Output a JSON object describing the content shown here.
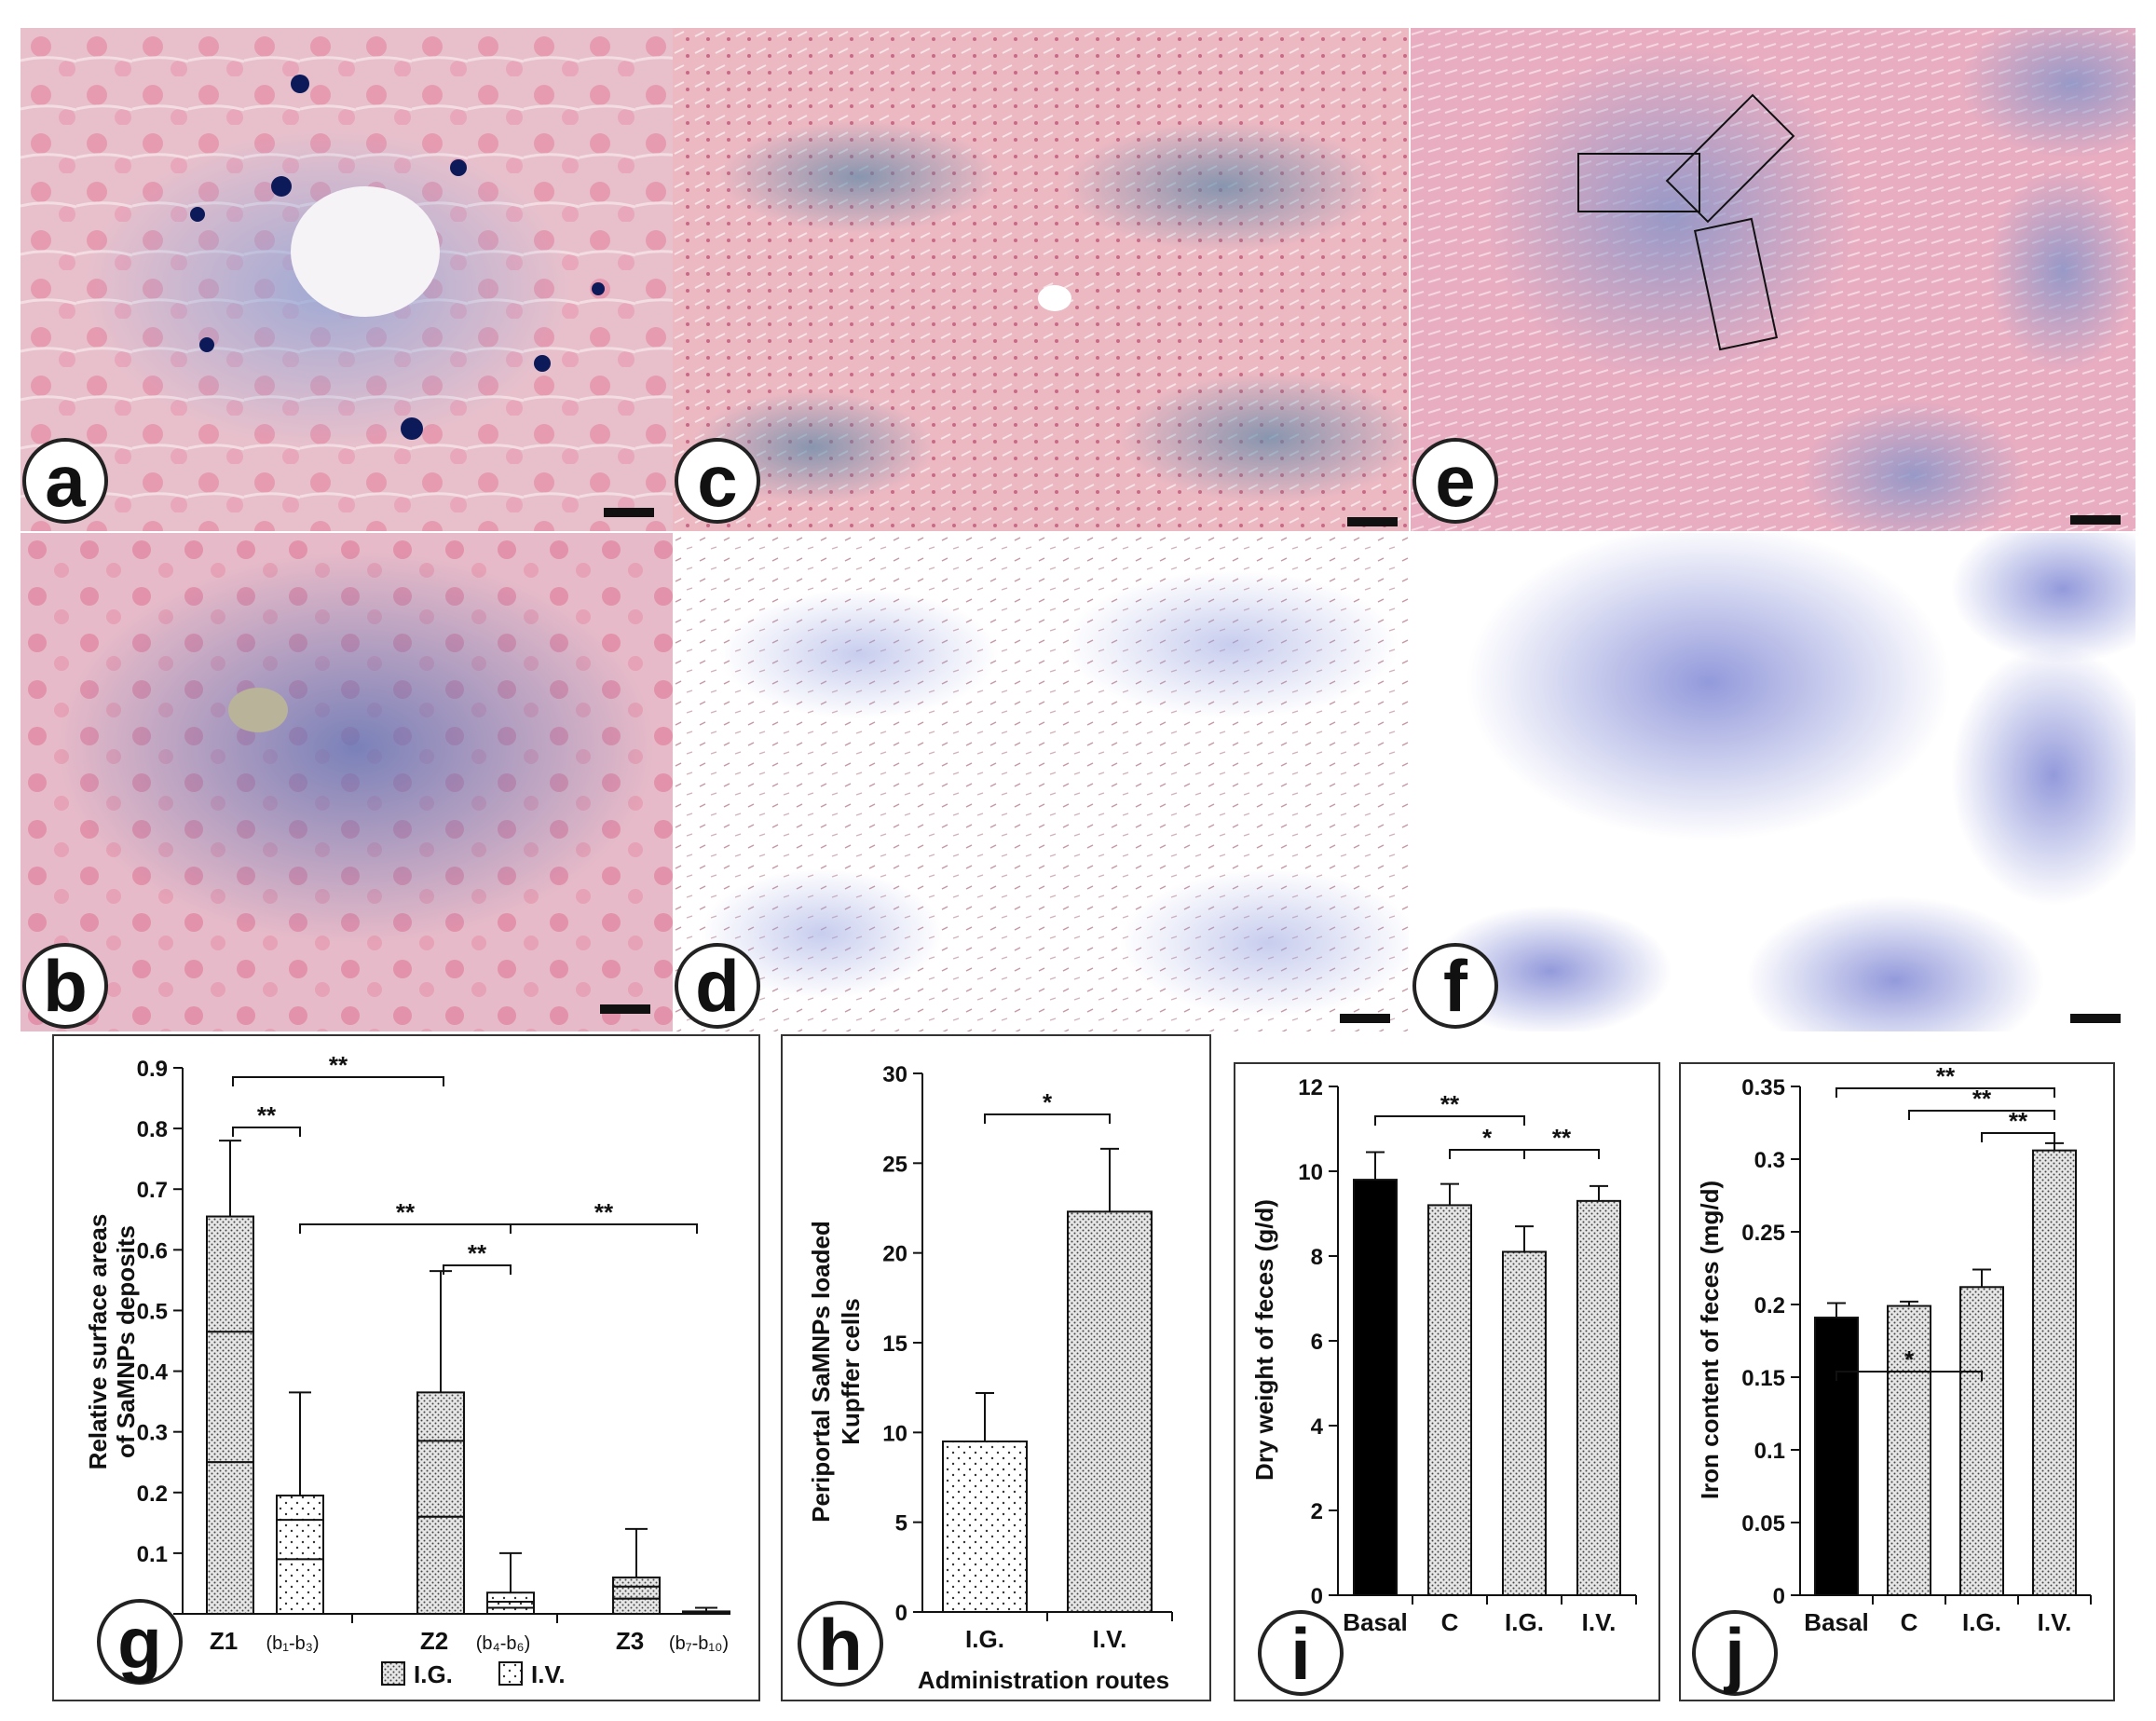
{
  "colors": {
    "tissue_pink": "#e9b8c6",
    "iron_blue": "#3a4aa8",
    "bar_black": "#000000",
    "stipple_fill": "#d8d8d8"
  },
  "micrographs": [
    {
      "letter": "a"
    },
    {
      "letter": "c"
    },
    {
      "letter": "e"
    },
    {
      "letter": "b"
    },
    {
      "letter": "d"
    },
    {
      "letter": "f"
    }
  ],
  "chart_data": [
    {
      "panel": "g",
      "type": "box",
      "ylabel": "Relative surface areas of SaMNPs deposits",
      "ylim": [
        0,
        0.9
      ],
      "yticks": [
        "0",
        "0.1",
        "0.2",
        "0.3",
        "0.4",
        "0.5",
        "0.6",
        "0.7",
        "0.8",
        "0.9"
      ],
      "categories": [
        "Z1",
        "Z2",
        "Z3"
      ],
      "category_subs": [
        "(b₁-b₃)",
        "(b₄-b₆)",
        "(b₇-b₁₀)"
      ],
      "legend": [
        "I.G.",
        "I.V."
      ],
      "series": [
        {
          "name": "I.G.",
          "boxes": [
            {
              "q1": 0.25,
              "median": 0.465,
              "q3": 0.655,
              "whisker": 0.78
            },
            {
              "q1": 0.16,
              "median": 0.285,
              "q3": 0.365,
              "whisker": 0.565
            },
            {
              "q1": 0.025,
              "median": 0.045,
              "q3": 0.06,
              "whisker": 0.14
            }
          ]
        },
        {
          "name": "I.V.",
          "boxes": [
            {
              "q1": 0.09,
              "median": 0.155,
              "q3": 0.195,
              "whisker": 0.365
            },
            {
              "q1": 0.01,
              "median": 0.02,
              "q3": 0.035,
              "whisker": 0.1
            },
            {
              "q1": 0.0,
              "median": 0.002,
              "q3": 0.004,
              "whisker": 0.01
            }
          ]
        }
      ],
      "significance": [
        "**",
        "**",
        "**",
        "**",
        "**"
      ]
    },
    {
      "panel": "h",
      "type": "bar",
      "ylabel": "Periportal SaMNPs loaded Kupffer cells",
      "xlabel": "Administration routes",
      "ylim": [
        0,
        30
      ],
      "yticks": [
        "0",
        "5",
        "10",
        "15",
        "20",
        "25",
        "30"
      ],
      "categories": [
        "I.G.",
        "I.V."
      ],
      "values": [
        9.5,
        22.3
      ],
      "errors": [
        2.7,
        3.5
      ],
      "significance": [
        "*"
      ]
    },
    {
      "panel": "i",
      "type": "bar",
      "ylabel": "Dry weight of feces (g/d)",
      "ylim": [
        0,
        12
      ],
      "yticks": [
        "0",
        "2",
        "4",
        "6",
        "8",
        "10",
        "12"
      ],
      "categories": [
        "Basal",
        "C",
        "I.G.",
        "I.V."
      ],
      "values": [
        9.8,
        9.2,
        8.1,
        9.3
      ],
      "errors": [
        0.65,
        0.5,
        0.6,
        0.35
      ],
      "significance": [
        "**",
        "*",
        "**"
      ]
    },
    {
      "panel": "j",
      "type": "bar",
      "ylabel": "Iron content of feces (mg/d)",
      "ylim": [
        0,
        0.35
      ],
      "yticks": [
        "0",
        "0.05",
        "0.1",
        "0.15",
        "0.2",
        "0.25",
        "0.3",
        "0.35"
      ],
      "categories": [
        "Basal",
        "C",
        "I.G.",
        "I.V."
      ],
      "values": [
        0.191,
        0.199,
        0.212,
        0.306
      ],
      "errors": [
        0.01,
        0.003,
        0.012,
        0.005
      ],
      "significance": [
        "**",
        "**",
        "**",
        "*"
      ]
    }
  ]
}
